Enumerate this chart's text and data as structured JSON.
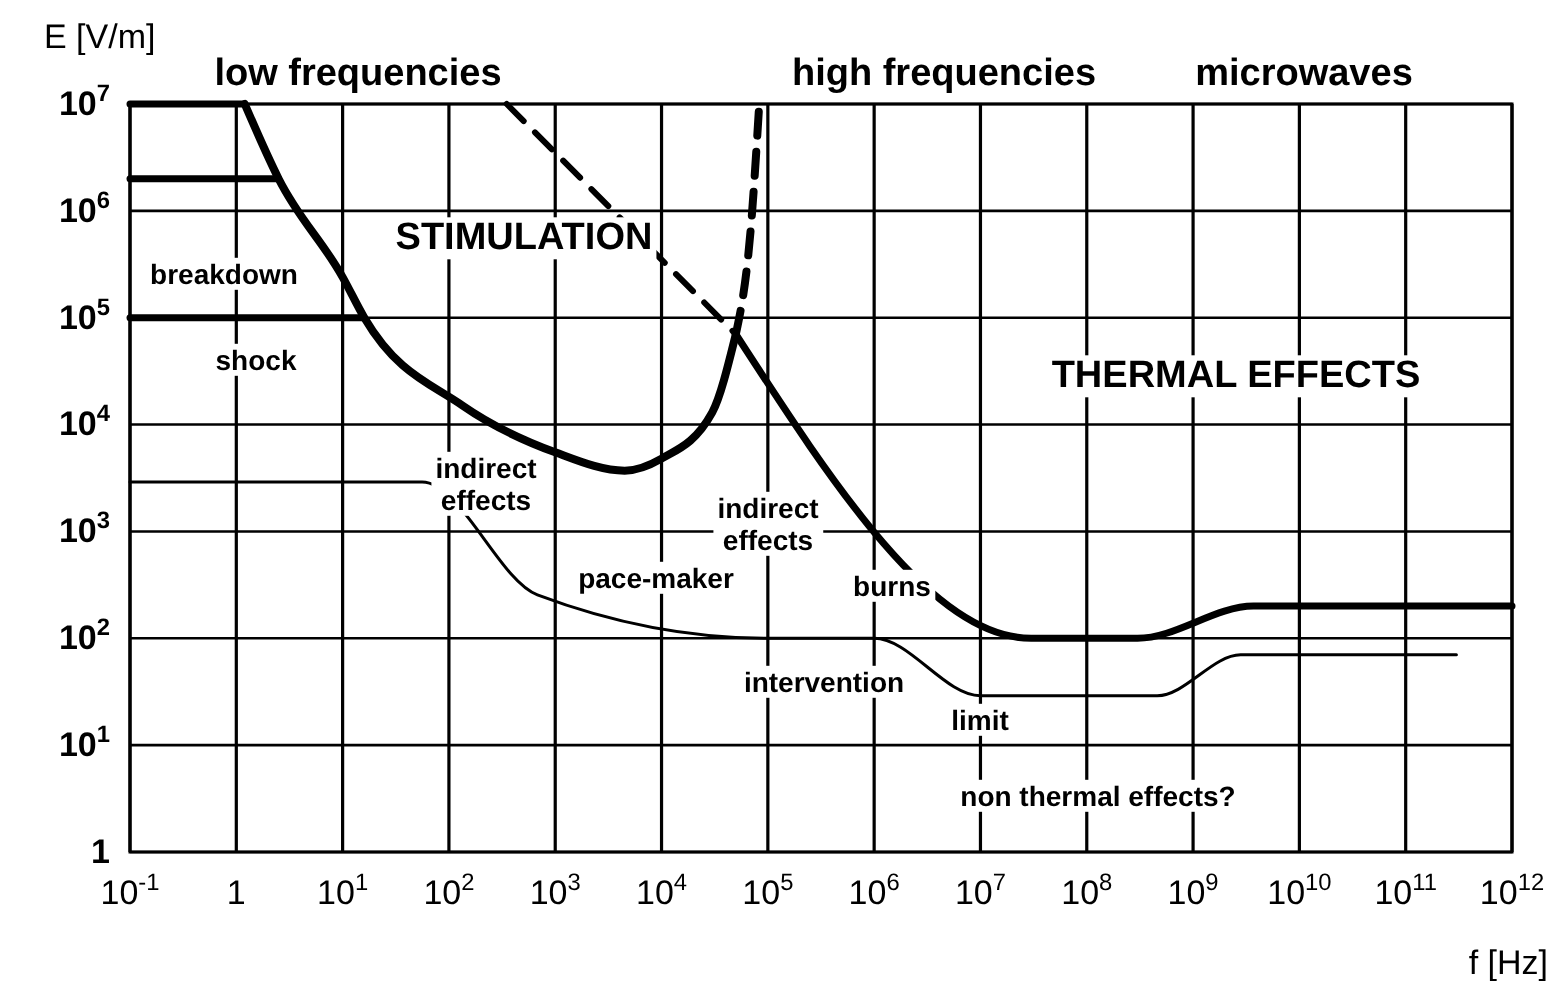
{
  "chart_data": {
    "type": "line",
    "xlabel": "f [Hz]",
    "ylabel": "E [V/m]",
    "log": "xy",
    "grid": true,
    "xlim": [
      0.1,
      1000000000000
    ],
    "ylim": [
      1,
      10000000
    ],
    "xticks": [
      {
        "value": 0.1,
        "label": "10$^{-1}$"
      },
      1,
      {
        "value": 10,
        "label": "10$^{1}$"
      },
      {
        "value": 100,
        "label": "10$^{2}$"
      },
      {
        "value": 1000,
        "label": "10$^{3}$"
      },
      {
        "value": 10000,
        "label": "10$^{4}$"
      },
      {
        "value": 100000,
        "label": "10$^{5}$"
      },
      {
        "value": 1000000,
        "label": "10$^{6}$"
      },
      {
        "value": 10000000,
        "label": "10$^{7}$"
      },
      {
        "value": 100000000,
        "label": "10$^{8}$"
      },
      {
        "value": 1000000000,
        "label": "10$^{9}$"
      },
      {
        "value": 10000000000,
        "label": "10$^{10}$"
      },
      {
        "value": 100000000000,
        "label": "10$^{11}$"
      },
      {
        "value": 1000000000000,
        "label": "10$^{12}$"
      }
    ],
    "yticks": [
      1,
      {
        "value": 10,
        "label": "10$^{1}$"
      },
      {
        "value": 100,
        "label": "10$^{2}$"
      },
      {
        "value": 1000,
        "label": "10$^{3}$"
      },
      {
        "value": 10000,
        "label": "10$^{4}$"
      },
      {
        "value": 100000,
        "label": "10$^{5}$"
      },
      {
        "value": 1000000,
        "label": "10$^{6}$"
      },
      {
        "value": 10000000,
        "label": "10$^{7}$"
      }
    ],
    "series": [
      {
        "color": "#000000",
        "line_style": "solid",
        "x": [
          1.2,
          2.5,
          10,
          16,
          135,
          1000,
          4500,
          10000,
          30000,
          50000
        ],
        "values": [
          10000000,
          2000000,
          240000,
          100000,
          15000,
          5500,
          3700,
          4800,
          13000,
          70000
        ]
      },
      {
        "color": "#000000",
        "line_style": "dashed",
        "x": [
          50000,
          70000,
          83000
        ],
        "values": [
          70000,
          800000,
          10000000
        ]
      },
      {
        "color": "#000000",
        "line_style": "dashed",
        "x": [
          350,
          50000
        ],
        "values": [
          10000000,
          70000
        ]
      },
      {
        "color": "#000000",
        "line_style": "solid",
        "x": [
          50000,
          30000000,
          300000000,
          3700000000,
          1000000000000
        ],
        "values": [
          70000,
          100,
          100,
          200,
          200
        ]
      },
      {
        "color": "#000000",
        "line_style": "solid",
        "x": [
          0.1,
          2.5
        ],
        "values": [
          2000000,
          2000000
        ]
      },
      {
        "color": "#000000",
        "line_style": "solid",
        "x": [
          0.1,
          16
        ],
        "values": [
          100000,
          100000
        ]
      },
      {
        "color": "#000000",
        "line_style": "solid",
        "x": [
          0.1,
          1.2
        ],
        "values": [
          10000000,
          10000000
        ]
      },
      {
        "color": "#000000",
        "line_style": "solid",
        "x": [
          0.1,
          56,
          680,
          100000,
          1000000,
          10000000,
          460000000,
          2800000000,
          300000000000
        ],
        "values": [
          2900,
          2900,
          255,
          100,
          100,
          29,
          29,
          70,
          70
        ]
      }
    ],
    "annotations": [
      "low frequencies",
      "high frequencies",
      "microwaves",
      "STIMULATION",
      "THERMAL EFFECTS",
      "breakdown",
      "shock",
      "indirect\neffects",
      "indirect\neffects",
      "pace-maker",
      "burns",
      "intervention",
      "limit",
      "non thermal effects?"
    ]
  }
}
